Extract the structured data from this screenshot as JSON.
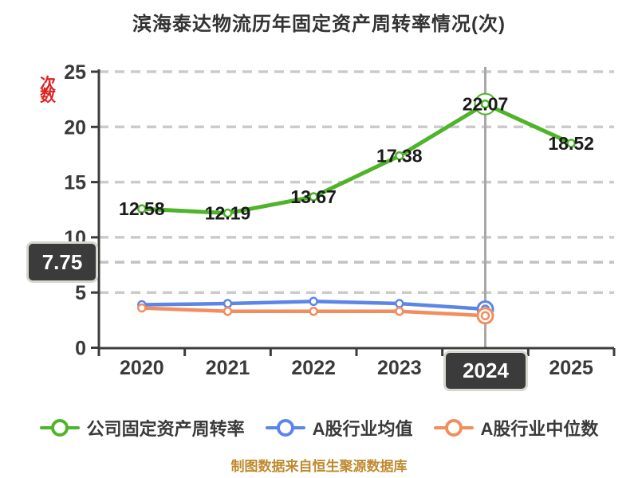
{
  "title": "滨海泰达物流历年固定资产周转率情况(次)",
  "caption": "制图数据来自恒生聚源数据库",
  "y_axis_unit": "次数",
  "axis_pointer": {
    "x_label": "2024",
    "y_label": "7.75",
    "y_value": 7.75,
    "category_index": 4
  },
  "colors": {
    "company_line": "#4fb42a",
    "industry_mean_line": "#5c85e8",
    "industry_median_line": "#f28e5e",
    "grid": "#cbcbcb",
    "axis": "#3c3c3c",
    "pointer_line": "#a8a8a8",
    "tooltip_bg": "#3b3b3b",
    "tooltip_border": "#d8d6cf",
    "title_text": "#333333",
    "caption_text": "#c08a2e",
    "unit_text": "#e02222"
  },
  "chart_data": {
    "type": "line",
    "title": "滨海泰达物流历年固定资产周转率情况(次)",
    "categories": [
      "2020",
      "2021",
      "2022",
      "2023",
      "2024",
      "2025"
    ],
    "series": [
      {
        "name": "公司固定资产周转率",
        "color": "#4fb42a",
        "values": [
          12.58,
          12.19,
          13.67,
          17.38,
          22.07,
          18.52
        ],
        "labels": [
          "12.58",
          "12.19",
          "13.67",
          "17.38",
          "22.07",
          "18.52"
        ],
        "show_labels": true
      },
      {
        "name": "A股行业均值",
        "color": "#5c85e8",
        "values": [
          3.9,
          4.0,
          4.2,
          4.0,
          3.5,
          null
        ],
        "show_labels": false
      },
      {
        "name": "A股行业中位数",
        "color": "#f28e5e",
        "values": [
          3.6,
          3.3,
          3.3,
          3.3,
          2.9,
          null
        ],
        "show_labels": false
      }
    ],
    "xlabel": "",
    "ylabel": "次数",
    "ylim": [
      0,
      25
    ],
    "y_ticks": [
      0,
      5,
      10,
      15,
      20,
      25
    ],
    "grid": "dashed-horizontal",
    "legend_position": "bottom"
  }
}
